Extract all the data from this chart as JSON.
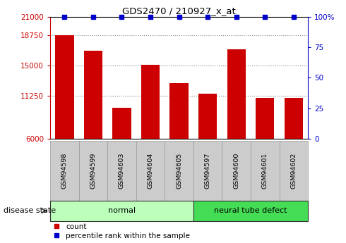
{
  "title": "GDS2470 / 210927_x_at",
  "samples": [
    "GSM94598",
    "GSM94599",
    "GSM94603",
    "GSM94604",
    "GSM94605",
    "GSM94597",
    "GSM94600",
    "GSM94601",
    "GSM94602"
  ],
  "counts": [
    18750,
    16800,
    9800,
    15100,
    12800,
    11500,
    17000,
    11000,
    11000
  ],
  "percentiles": [
    100,
    100,
    100,
    100,
    100,
    100,
    100,
    100,
    100
  ],
  "bar_color": "#CC0000",
  "dot_color": "#0000CC",
  "ylim_left": [
    6000,
    21000
  ],
  "yticks_left": [
    6000,
    11250,
    15000,
    18750,
    21000
  ],
  "ylim_right": [
    0,
    100
  ],
  "yticks_right": [
    0,
    25,
    50,
    75,
    100
  ],
  "groups": [
    {
      "label": "normal",
      "indices": [
        0,
        1,
        2,
        3,
        4
      ],
      "color": "#bbffbb"
    },
    {
      "label": "neural tube defect",
      "indices": [
        5,
        6,
        7,
        8
      ],
      "color": "#44dd55"
    }
  ],
  "sample_box_color": "#cccccc",
  "disease_state_label": "disease state",
  "legend_count_label": "count",
  "legend_percentile_label": "percentile rank within the sample",
  "grid_color": "#888888",
  "tick_label_color_left": "#CC0000",
  "tick_label_color_right": "#0000CC"
}
